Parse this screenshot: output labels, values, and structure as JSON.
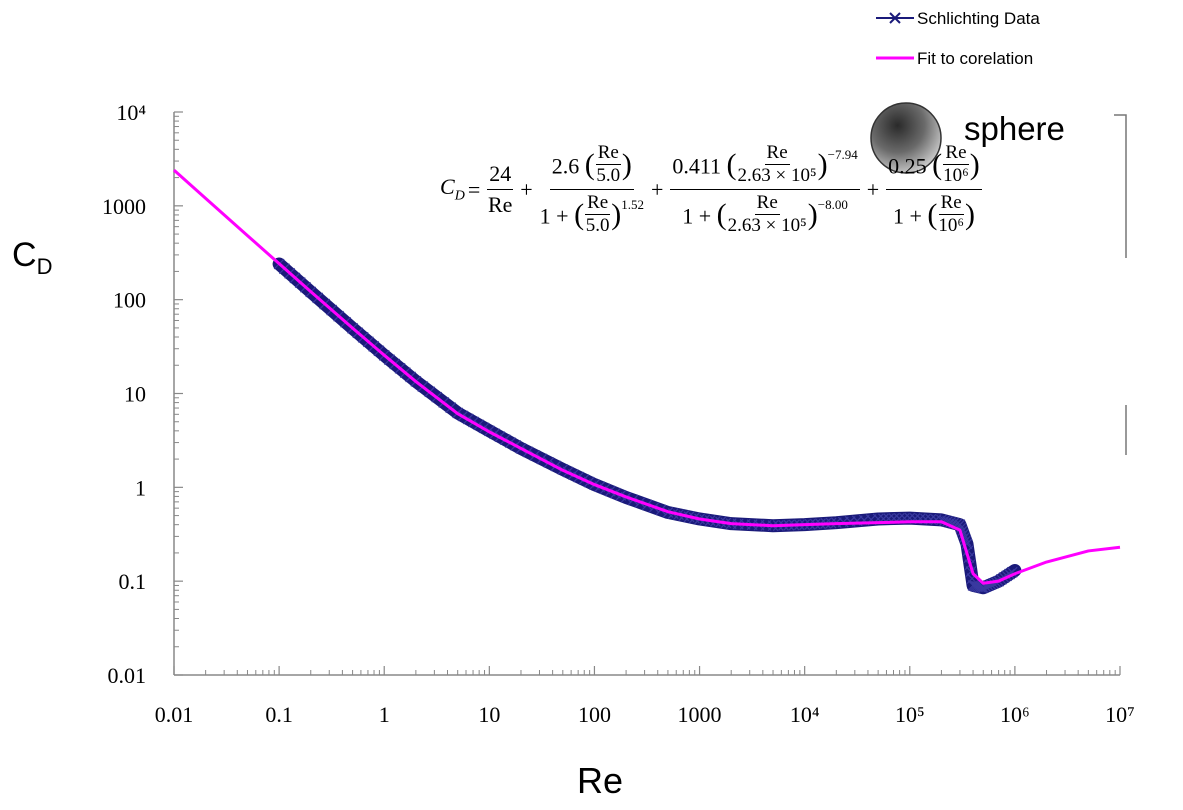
{
  "chart_data": {
    "type": "line",
    "xscale": "log",
    "yscale": "log",
    "xlim": [
      0.01,
      10000000
    ],
    "ylim": [
      0.01,
      10000
    ],
    "xlabel": "Re",
    "ylabel": "C_D",
    "x_tick_labels": [
      "0.01",
      "0.1",
      "1",
      "10",
      "100",
      "1000",
      "10⁴",
      "10⁵",
      "10⁶",
      "10⁷"
    ],
    "y_tick_labels": [
      "0.01",
      "0.1",
      "1",
      "10",
      "100",
      "1000",
      "10⁴"
    ],
    "legend_position": "top-right",
    "series": [
      {
        "name": "Schlichting Data",
        "color": "#1a1a7a",
        "marker": "x",
        "x": [
          0.1,
          0.2,
          0.5,
          1,
          2,
          5,
          10,
          20,
          50,
          100,
          200,
          500,
          1000,
          2000,
          5000,
          10000,
          20000,
          50000,
          100000,
          200000,
          300000,
          350000,
          400000,
          500000,
          700000,
          1000000
        ],
        "y": [
          240,
          121,
          49.5,
          25.5,
          13.5,
          6.2,
          4.0,
          2.6,
          1.55,
          1.07,
          0.78,
          0.54,
          0.46,
          0.41,
          0.39,
          0.4,
          0.42,
          0.46,
          0.47,
          0.45,
          0.4,
          0.25,
          0.09,
          0.085,
          0.1,
          0.13
        ]
      },
      {
        "name": "Fit to corelation",
        "color": "#ff00ff",
        "x": [
          0.01,
          0.02,
          0.05,
          0.1,
          0.2,
          0.5,
          1,
          2,
          5,
          10,
          20,
          50,
          100,
          200,
          500,
          1000,
          2000,
          5000,
          10000,
          20000,
          50000,
          100000,
          200000,
          300000,
          400000,
          500000,
          700000,
          1000000,
          2000000,
          5000000,
          10000000
        ],
        "y": [
          2400,
          1200,
          482,
          242,
          122,
          49.8,
          25.6,
          13.4,
          6.1,
          3.9,
          2.6,
          1.52,
          1.07,
          0.79,
          0.55,
          0.46,
          0.41,
          0.39,
          0.4,
          0.41,
          0.42,
          0.43,
          0.43,
          0.35,
          0.12,
          0.095,
          0.1,
          0.12,
          0.16,
          0.21,
          0.23
        ]
      }
    ],
    "annotations": [
      "sphere"
    ]
  },
  "equation": {
    "lhs": "C",
    "lhs_sub": "D",
    "t1_num": "24",
    "t1_den": "Re",
    "t2_coef": "2.6",
    "t2_frac_num": "Re",
    "t2_frac_den": "5.0",
    "t2_den_one": "1 +",
    "t2_exp": "1.52",
    "t3_coef": "0.411",
    "t3_frac_num": "Re",
    "t3_frac_den": "2.63 × 10⁵",
    "t3_num_exp": "−7.94",
    "t3_den_one": "1 +",
    "t3_den_exp": "−8.00",
    "t4_coef": "0.25",
    "t4_frac_num": "Re",
    "t4_frac_den": "10⁶",
    "t4_den_one": "1 +"
  },
  "sphere_label": "sphere"
}
